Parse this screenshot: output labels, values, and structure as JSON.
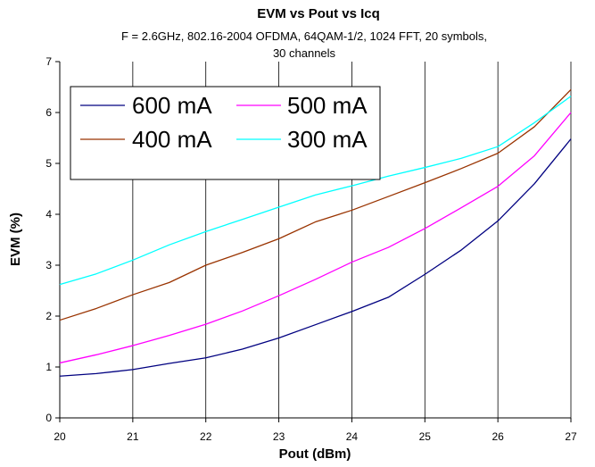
{
  "chart_data": {
    "type": "line",
    "title": "EVM vs Pout vs Icq",
    "subtitle_line1": "F = 2.6GHz, 802.16-2004 OFDMA, 64QAM-1/2, 1024 FFT, 20 symbols,",
    "subtitle_line2": "30 channels",
    "xlabel": "Pout (dBm)",
    "ylabel": "EVM (%)",
    "xlim": [
      20,
      27
    ],
    "ylim": [
      0,
      7
    ],
    "x_ticks": [
      "20",
      "21",
      "22",
      "23",
      "24",
      "25",
      "26",
      "27"
    ],
    "y_ticks": [
      "0",
      "1",
      "2",
      "3",
      "4",
      "5",
      "6",
      "7"
    ],
    "grid": "vertical",
    "legend_position": "top-left",
    "series": [
      {
        "name": "600 mA",
        "color": "#000080",
        "points": [
          [
            20,
            0.82
          ],
          [
            20.5,
            0.87
          ],
          [
            21,
            0.95
          ],
          [
            21.5,
            1.07
          ],
          [
            22,
            1.18
          ],
          [
            22.5,
            1.35
          ],
          [
            23,
            1.57
          ],
          [
            23.5,
            1.83
          ],
          [
            24,
            2.09
          ],
          [
            24.5,
            2.37
          ],
          [
            25,
            2.82
          ],
          [
            25.5,
            3.3
          ],
          [
            26,
            3.87
          ],
          [
            26.5,
            4.6
          ],
          [
            27,
            5.48
          ]
        ]
      },
      {
        "name": "500 mA",
        "color": "#FF00FF",
        "points": [
          [
            20,
            1.08
          ],
          [
            20.5,
            1.24
          ],
          [
            21,
            1.42
          ],
          [
            21.5,
            1.62
          ],
          [
            22,
            1.84
          ],
          [
            22.5,
            2.1
          ],
          [
            23,
            2.4
          ],
          [
            23.5,
            2.72
          ],
          [
            24,
            3.06
          ],
          [
            24.5,
            3.35
          ],
          [
            25,
            3.72
          ],
          [
            25.5,
            4.13
          ],
          [
            26,
            4.55
          ],
          [
            26.5,
            5.15
          ],
          [
            27,
            6.0
          ]
        ]
      },
      {
        "name": "400 mA",
        "color": "#993300",
        "points": [
          [
            20,
            1.92
          ],
          [
            20.5,
            2.15
          ],
          [
            21,
            2.42
          ],
          [
            21.5,
            2.66
          ],
          [
            22,
            3.0
          ],
          [
            22.5,
            3.25
          ],
          [
            23,
            3.52
          ],
          [
            23.5,
            3.85
          ],
          [
            24,
            4.08
          ],
          [
            24.5,
            4.35
          ],
          [
            25,
            4.62
          ],
          [
            25.5,
            4.9
          ],
          [
            26,
            5.2
          ],
          [
            26.5,
            5.72
          ],
          [
            27,
            6.45
          ]
        ]
      },
      {
        "name": "300 mA",
        "color": "#00FFFF",
        "points": [
          [
            20,
            2.62
          ],
          [
            20.5,
            2.83
          ],
          [
            21,
            3.1
          ],
          [
            21.5,
            3.4
          ],
          [
            22,
            3.66
          ],
          [
            22.5,
            3.9
          ],
          [
            23,
            4.14
          ],
          [
            23.5,
            4.38
          ],
          [
            24,
            4.56
          ],
          [
            24.5,
            4.75
          ],
          [
            25,
            4.92
          ],
          [
            25.5,
            5.1
          ],
          [
            26,
            5.33
          ],
          [
            26.5,
            5.8
          ],
          [
            27,
            6.32
          ]
        ]
      }
    ]
  }
}
